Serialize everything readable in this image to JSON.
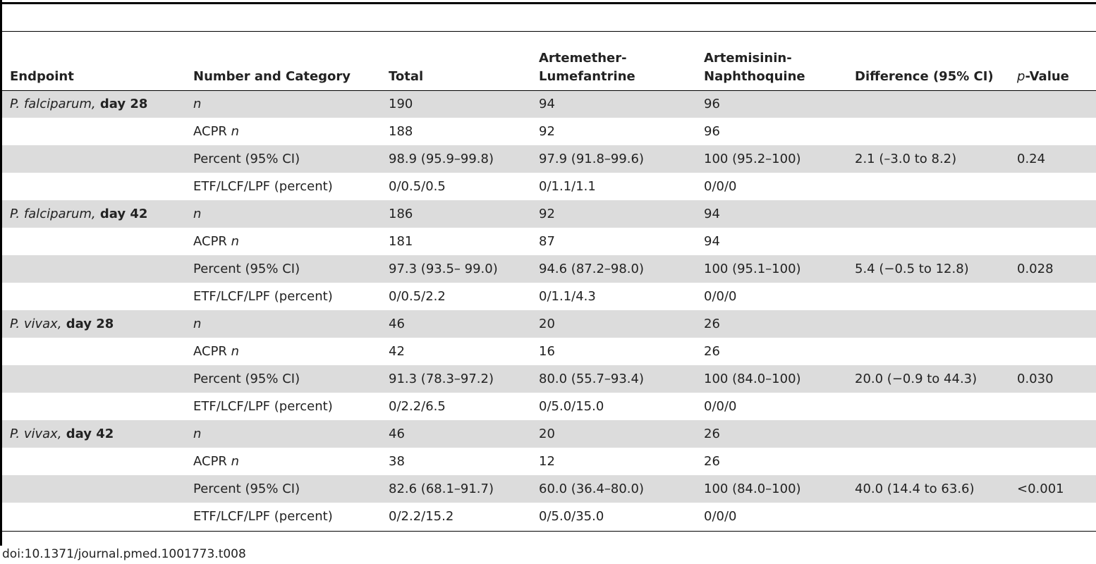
{
  "table": {
    "headers": {
      "endpoint": "Endpoint",
      "number_category": "Number and Category",
      "total": "Total",
      "al": "Artemether-Lumefantrine",
      "an": "Artemisinin-Naphthoquine",
      "difference": "Difference (95% CI)",
      "pvalue_p": "p",
      "pvalue_rest": "-Value"
    },
    "rows": [
      {
        "endpoint_italic": "P. falciparum,",
        "endpoint_bold": " day 28",
        "cat_text": "",
        "cat_italic": "n",
        "total": "190",
        "al": "94",
        "an": "96",
        "difference": "",
        "pvalue": ""
      },
      {
        "endpoint_italic": "",
        "endpoint_bold": "",
        "cat_text": "ACPR ",
        "cat_italic": "n",
        "total": "188",
        "al": "92",
        "an": "96",
        "difference": "",
        "pvalue": ""
      },
      {
        "endpoint_italic": "",
        "endpoint_bold": "",
        "cat_text": "Percent (95% CI)",
        "cat_italic": "",
        "total": "98.9 (95.9–99.8)",
        "al": "97.9 (91.8–99.6)",
        "an": "100 (95.2–100)",
        "difference": "2.1 (–3.0 to 8.2)",
        "pvalue": "0.24"
      },
      {
        "endpoint_italic": "",
        "endpoint_bold": "",
        "cat_text": "ETF/LCF/LPF (percent)",
        "cat_italic": "",
        "total": "0/0.5/0.5",
        "al": "0/1.1/1.1",
        "an": "0/0/0",
        "difference": "",
        "pvalue": ""
      },
      {
        "endpoint_italic": "P. falciparum,",
        "endpoint_bold": " day 42",
        "cat_text": "",
        "cat_italic": "n",
        "total": "186",
        "al": "92",
        "an": "94",
        "difference": "",
        "pvalue": ""
      },
      {
        "endpoint_italic": "",
        "endpoint_bold": "",
        "cat_text": "ACPR ",
        "cat_italic": "n",
        "total": "181",
        "al": "87",
        "an": "94",
        "difference": "",
        "pvalue": ""
      },
      {
        "endpoint_italic": "",
        "endpoint_bold": "",
        "cat_text": "Percent (95% CI)",
        "cat_italic": "",
        "total": "97.3 (93.5– 99.0)",
        "al": "94.6 (87.2–98.0)",
        "an": "100 (95.1–100)",
        "difference": "5.4 (−0.5 to 12.8)",
        "pvalue": "0.028"
      },
      {
        "endpoint_italic": "",
        "endpoint_bold": "",
        "cat_text": "ETF/LCF/LPF (percent)",
        "cat_italic": "",
        "total": "0/0.5/2.2",
        "al": "0/1.1/4.3",
        "an": "0/0/0",
        "difference": "",
        "pvalue": ""
      },
      {
        "endpoint_italic": "P. vivax,",
        "endpoint_bold": " day 28",
        "cat_text": "",
        "cat_italic": "n",
        "total": "46",
        "al": "20",
        "an": "26",
        "difference": "",
        "pvalue": ""
      },
      {
        "endpoint_italic": "",
        "endpoint_bold": "",
        "cat_text": "ACPR ",
        "cat_italic": "n",
        "total": "42",
        "al": "16",
        "an": "26",
        "difference": "",
        "pvalue": ""
      },
      {
        "endpoint_italic": "",
        "endpoint_bold": "",
        "cat_text": "Percent (95% CI)",
        "cat_italic": "",
        "total": "91.3 (78.3–97.2)",
        "al": "80.0 (55.7–93.4)",
        "an": "100 (84.0–100)",
        "difference": "20.0 (−0.9 to 44.3)",
        "pvalue": "0.030"
      },
      {
        "endpoint_italic": "",
        "endpoint_bold": "",
        "cat_text": "ETF/LCF/LPF (percent)",
        "cat_italic": "",
        "total": "0/2.2/6.5",
        "al": "0/5.0/15.0",
        "an": "0/0/0",
        "difference": "",
        "pvalue": ""
      },
      {
        "endpoint_italic": "P. vivax,",
        "endpoint_bold": " day 42",
        "cat_text": "",
        "cat_italic": "n",
        "total": "46",
        "al": "20",
        "an": "26",
        "difference": "",
        "pvalue": ""
      },
      {
        "endpoint_italic": "",
        "endpoint_bold": "",
        "cat_text": "ACPR ",
        "cat_italic": "n",
        "total": "38",
        "al": "12",
        "an": "26",
        "difference": "",
        "pvalue": ""
      },
      {
        "endpoint_italic": "",
        "endpoint_bold": "",
        "cat_text": "Percent (95% CI)",
        "cat_italic": "",
        "total": "82.6 (68.1–91.7)",
        "al": "60.0 (36.4–80.0)",
        "an": "100 (84.0–100)",
        "difference": "40.0 (14.4 to 63.6)",
        "pvalue": "<0.001"
      },
      {
        "endpoint_italic": "",
        "endpoint_bold": "",
        "cat_text": "ETF/LCF/LPF (percent)",
        "cat_italic": "",
        "total": "0/2.2/15.2",
        "al": "0/5.0/35.0",
        "an": "0/0/0",
        "difference": "",
        "pvalue": ""
      }
    ]
  },
  "footer": {
    "doi": "doi:10.1371/journal.pmed.1001773.t008"
  },
  "colors": {
    "row_shade": "#dcdcdc",
    "rule": "#000000",
    "text": "#222222"
  }
}
